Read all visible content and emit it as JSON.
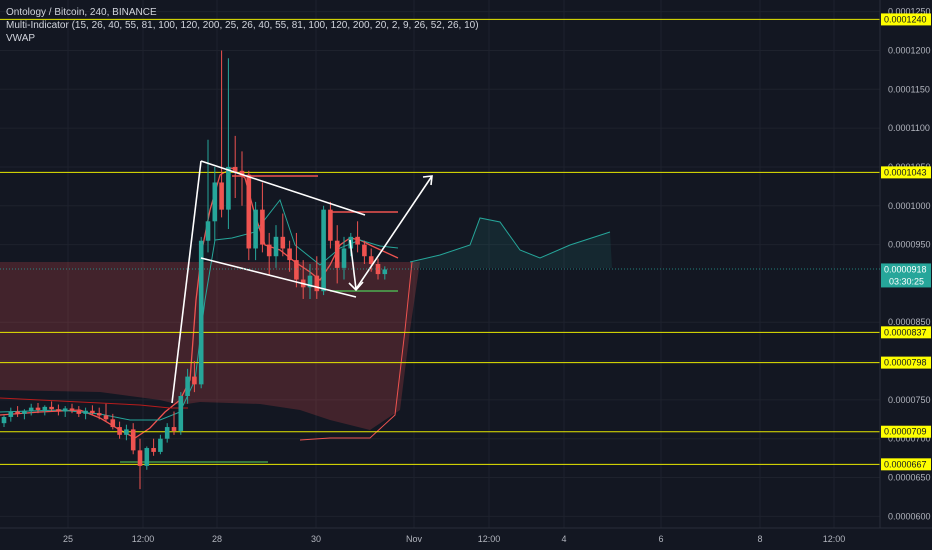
{
  "header": {
    "title": "Ontology / Bitcoin, 240, BINANCE",
    "indicator1": "Multi-Indicator (15, 26, 40, 55, 81, 100, 120, 200, 25, 26, 40, 55, 81, 100, 120, 200, 20, 2, 9, 26, 52, 26, 10)",
    "indicator2": "VWAP"
  },
  "colors": {
    "background": "#131722",
    "bull": "#26a69a",
    "bear": "#ef5350",
    "level_line": "#e8e800",
    "level_label_bg": "#ffff00",
    "current_price_bg": "#26a69a",
    "drawing": "#ffffff"
  },
  "chart_data": {
    "type": "candlestick",
    "symbol": "ONT/BTC",
    "ylim": [
      5.85e-05,
      0.0001265
    ],
    "y_ticks": [
      "0.0001250",
      "0.0001200",
      "0.0001150",
      "0.0001100",
      "0.0001050",
      "0.0001000",
      "0.0000950",
      "0.0000850",
      "0.0000800",
      "0.0000750",
      "0.0000700",
      "0.0000650",
      "0.0000600"
    ],
    "x_ticks": [
      "25",
      "12:00",
      "28",
      "30",
      "Nov",
      "12:00",
      "4",
      "6",
      "8",
      "12:00"
    ],
    "horizontal_levels": [
      "0.0001240",
      "0.0001043",
      "0.0000837",
      "0.0000798",
      "0.0000709",
      "0.0000667"
    ],
    "current_price": "0.0000918",
    "countdown": "03:30:25",
    "candles": [
      [
        7.2e-05,
        7.3e-05,
        7.15e-05,
        7.28e-05
      ],
      [
        7.28e-05,
        7.4e-05,
        7.22e-05,
        7.35e-05
      ],
      [
        7.35e-05,
        7.42e-05,
        7.28e-05,
        7.32e-05
      ],
      [
        7.32e-05,
        7.38e-05,
        7.25e-05,
        7.36e-05
      ],
      [
        7.36e-05,
        7.45e-05,
        7.3e-05,
        7.4e-05
      ],
      [
        7.4e-05,
        7.46e-05,
        7.33e-05,
        7.37e-05
      ],
      [
        7.37e-05,
        7.43e-05,
        7.3e-05,
        7.41e-05
      ],
      [
        7.41e-05,
        7.48e-05,
        7.35e-05,
        7.38e-05
      ],
      [
        7.38e-05,
        7.44e-05,
        7.3e-05,
        7.35e-05
      ],
      [
        7.35e-05,
        7.42e-05,
        7.28e-05,
        7.39e-05
      ],
      [
        7.39e-05,
        7.45e-05,
        7.33e-05,
        7.36e-05
      ],
      [
        7.36e-05,
        7.42e-05,
        7.28e-05,
        7.32e-05
      ],
      [
        7.32e-05,
        7.4e-05,
        7.25e-05,
        7.36e-05
      ],
      [
        7.36e-05,
        7.43e-05,
        7.3e-05,
        7.33e-05
      ],
      [
        7.33e-05,
        7.4e-05,
        7.25e-05,
        7.3e-05
      ],
      [
        7.3e-05,
        7.45e-05,
        7.22e-05,
        7.25e-05
      ],
      [
        7.25e-05,
        7.32e-05,
        7.12e-05,
        7.15e-05
      ],
      [
        7.15e-05,
        7.22e-05,
        7e-05,
        7.05e-05
      ],
      [
        7.05e-05,
        7.18e-05,
        6.98e-05,
        7.12e-05
      ],
      [
        7.12e-05,
        7.2e-05,
        6.8e-05,
        6.85e-05
      ],
      [
        6.85e-05,
        7e-05,
        6.35e-05,
        6.65e-05
      ],
      [
        6.65e-05,
        6.9e-05,
        6.6e-05,
        6.88e-05
      ],
      [
        6.88e-05,
        7e-05,
        6.78e-05,
        6.83e-05
      ],
      [
        6.83e-05,
        7.05e-05,
        6.8e-05,
        7e-05
      ],
      [
        7e-05,
        7.2e-05,
        6.95e-05,
        7.15e-05
      ],
      [
        7.15e-05,
        7.35e-05,
        7.05e-05,
        7.1e-05
      ],
      [
        7.1e-05,
        7.6e-05,
        7.05e-05,
        7.55e-05
      ],
      [
        7.55e-05,
        7.9e-05,
        7.45e-05,
        7.8e-05
      ],
      [
        7.8e-05,
        8e-05,
        7.6e-05,
        7.7e-05
      ],
      [
        7.7e-05,
        9.6e-05,
        7.65e-05,
        9.55e-05
      ],
      [
        9.55e-05,
        0.0001085,
        9.4e-05,
        9.8e-05
      ],
      [
        9.8e-05,
        0.000105,
        9.55e-05,
        0.000103
      ],
      [
        0.000103,
        0.00012,
        9.85e-05,
        9.95e-05
      ],
      [
        9.95e-05,
        0.000119,
        9.7e-05,
        0.000105
      ],
      [
        0.000105,
        0.000109,
        0.000101,
        0.0001045
      ],
      [
        0.0001045,
        0.000107,
        0.0001,
        0.000104
      ],
      [
        0.000104,
        0.0001045,
        9.3e-05,
        9.45e-05
      ],
      [
        9.45e-05,
        0.0001005,
        9.3e-05,
        9.95e-05
      ],
      [
        9.95e-05,
        0.000103,
        9.4e-05,
        9.5e-05
      ],
      [
        9.5e-05,
        9.65e-05,
        9.1e-05,
        9.35e-05
      ],
      [
        9.35e-05,
        9.75e-05,
        9.2e-05,
        9.6e-05
      ],
      [
        9.6e-05,
        9.9e-05,
        9.35e-05,
        9.45e-05
      ],
      [
        9.45e-05,
        9.55e-05,
        9.15e-05,
        9.3e-05
      ],
      [
        9.3e-05,
        9.65e-05,
        8.95e-05,
        9.05e-05
      ],
      [
        9.05e-05,
        9.3e-05,
        8.8e-05,
        8.95e-05
      ],
      [
        8.95e-05,
        9.25e-05,
        8.8e-05,
        9.1e-05
      ],
      [
        9.1e-05,
        9.35e-05,
        8.8e-05,
        8.9e-05
      ],
      [
        8.9e-05,
        0.0001,
        8.85e-05,
        9.95e-05
      ],
      [
        9.95e-05,
        0.0001005,
        9.45e-05,
        9.55e-05
      ],
      [
        9.55e-05,
        9.75e-05,
        9e-05,
        9.2e-05
      ],
      [
        9.2e-05,
        9.6e-05,
        9.05e-05,
        9.45e-05
      ],
      [
        9.45e-05,
        9.65e-05,
        9.35e-05,
        9.6e-05
      ],
      [
        9.6e-05,
        9.8e-05,
        9.4e-05,
        9.5e-05
      ],
      [
        9.5e-05,
        9.55e-05,
        9.25e-05,
        9.35e-05
      ],
      [
        9.35e-05,
        9.45e-05,
        9.15e-05,
        9.25e-05
      ],
      [
        9.25e-05,
        9.32e-05,
        9.05e-05,
        9.12e-05
      ],
      [
        9.12e-05,
        9.22e-05,
        9.05e-05,
        9.18e-05
      ]
    ]
  }
}
